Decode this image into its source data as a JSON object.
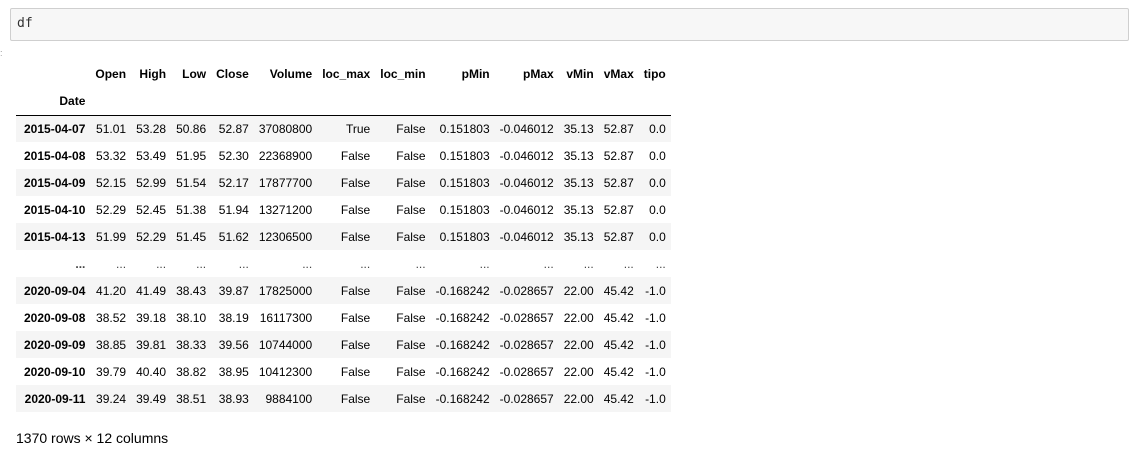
{
  "input": {
    "code": "df"
  },
  "table": {
    "columns": [
      "Open",
      "High",
      "Low",
      "Close",
      "Volume",
      "loc_max",
      "loc_min",
      "pMin",
      "pMax",
      "vMin",
      "vMax",
      "tipo"
    ],
    "index_name": "Date",
    "rows": [
      {
        "index": "2015-04-07",
        "cells": [
          "51.01",
          "53.28",
          "50.86",
          "52.87",
          "37080800",
          "True",
          "False",
          "0.151803",
          "-0.046012",
          "35.13",
          "52.87",
          "0.0"
        ]
      },
      {
        "index": "2015-04-08",
        "cells": [
          "53.32",
          "53.49",
          "51.95",
          "52.30",
          "22368900",
          "False",
          "False",
          "0.151803",
          "-0.046012",
          "35.13",
          "52.87",
          "0.0"
        ]
      },
      {
        "index": "2015-04-09",
        "cells": [
          "52.15",
          "52.99",
          "51.54",
          "52.17",
          "17877700",
          "False",
          "False",
          "0.151803",
          "-0.046012",
          "35.13",
          "52.87",
          "0.0"
        ]
      },
      {
        "index": "2015-04-10",
        "cells": [
          "52.29",
          "52.45",
          "51.38",
          "51.94",
          "13271200",
          "False",
          "False",
          "0.151803",
          "-0.046012",
          "35.13",
          "52.87",
          "0.0"
        ]
      },
      {
        "index": "2015-04-13",
        "cells": [
          "51.99",
          "52.29",
          "51.45",
          "51.62",
          "12306500",
          "False",
          "False",
          "0.151803",
          "-0.046012",
          "35.13",
          "52.87",
          "0.0"
        ]
      },
      {
        "index": "...",
        "cells": [
          "...",
          "...",
          "...",
          "...",
          "...",
          "...",
          "...",
          "...",
          "...",
          "...",
          "...",
          "..."
        ]
      },
      {
        "index": "2020-09-04",
        "cells": [
          "41.20",
          "41.49",
          "38.43",
          "39.87",
          "17825000",
          "False",
          "False",
          "-0.168242",
          "-0.028657",
          "22.00",
          "45.42",
          "-1.0"
        ]
      },
      {
        "index": "2020-09-08",
        "cells": [
          "38.52",
          "39.18",
          "38.10",
          "38.19",
          "16117300",
          "False",
          "False",
          "-0.168242",
          "-0.028657",
          "22.00",
          "45.42",
          "-1.0"
        ]
      },
      {
        "index": "2020-09-09",
        "cells": [
          "38.85",
          "39.81",
          "38.33",
          "39.56",
          "10744000",
          "False",
          "False",
          "-0.168242",
          "-0.028657",
          "22.00",
          "45.42",
          "-1.0"
        ]
      },
      {
        "index": "2020-09-10",
        "cells": [
          "39.79",
          "40.40",
          "38.82",
          "38.95",
          "10412300",
          "False",
          "False",
          "-0.168242",
          "-0.028657",
          "22.00",
          "45.42",
          "-1.0"
        ]
      },
      {
        "index": "2020-09-11",
        "cells": [
          "39.24",
          "39.49",
          "38.51",
          "38.93",
          "9884100",
          "False",
          "False",
          "-0.168242",
          "-0.028657",
          "22.00",
          "45.42",
          "-1.0"
        ]
      }
    ]
  },
  "shape_note": "1370 rows × 12 columns"
}
